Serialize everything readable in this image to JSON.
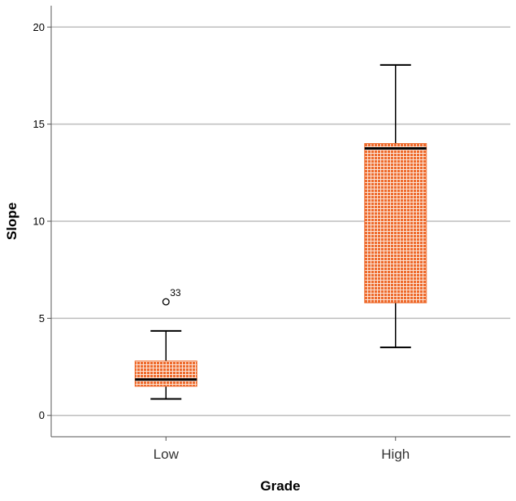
{
  "chart_data": {
    "type": "boxplot",
    "title": "",
    "xlabel": "Grade",
    "ylabel": "Slope",
    "ylim": [
      -1.1,
      21.1
    ],
    "yticks": [
      0,
      5,
      10,
      15,
      20
    ],
    "grid": true,
    "categories": [
      "Low",
      "High"
    ],
    "boxes": [
      {
        "name": "Low",
        "whisker_low": 0.85,
        "q1": 1.5,
        "median": 1.85,
        "q3": 2.8,
        "whisker_high": 4.35,
        "outliers": [
          {
            "value": 5.85,
            "label": "33"
          }
        ]
      },
      {
        "name": "High",
        "whisker_low": 3.5,
        "q1": 5.8,
        "median": 13.75,
        "q3": 14.0,
        "whisker_high": 18.05,
        "outliers": []
      }
    ],
    "colors": {
      "box_fill": "#ee6a2c",
      "box_grid": "#fbe3d5",
      "median": "#000000",
      "gridline": "#bdbdbd",
      "axis": "#555555"
    }
  }
}
